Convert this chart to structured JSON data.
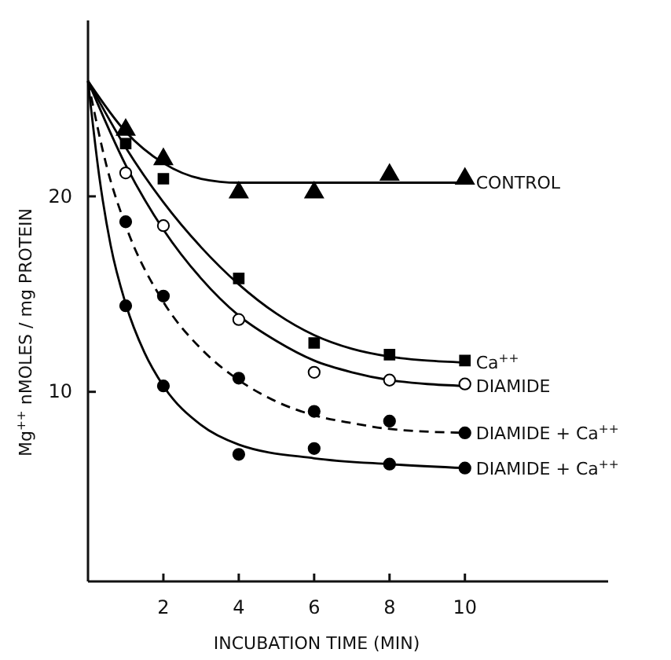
{
  "chart_data": {
    "type": "line",
    "xlabel": "INCUBATION TIME (MIN)",
    "ylabel": "Mg$^{++}$ nMOLES / mg PROTEIN",
    "xlim": [
      0,
      13.8
    ],
    "ylim": [
      0.3,
      29
    ],
    "xticks": [
      2,
      4,
      6,
      8,
      10
    ],
    "yticks": [
      10,
      20
    ],
    "grid": false,
    "legend": false,
    "series": [
      {
        "type": "line",
        "name": "CONTROL",
        "color": "#000000",
        "line_style": "solid",
        "marker": "none",
        "x": [
          0,
          1,
          2,
          3,
          4,
          6,
          10
        ],
        "values": [
          25.9,
          23.3,
          21.7,
          20.9,
          20.7,
          20.7,
          20.7
        ]
      },
      {
        "type": "scatter",
        "color": "#000000",
        "marker": "triangle",
        "x": [
          1,
          2,
          4,
          6,
          8,
          10
        ],
        "values": [
          23.4,
          21.9,
          20.2,
          20.2,
          21.1,
          20.9
        ]
      },
      {
        "type": "line",
        "name": "Ca$^{++}$",
        "color": "#000000",
        "line_style": "solid",
        "marker": "none",
        "x": [
          0,
          1,
          2,
          3,
          4,
          5,
          6,
          7,
          8,
          9,
          10
        ],
        "values": [
          25.9,
          22.5,
          19.7,
          17.4,
          15.5,
          14.0,
          12.9,
          12.2,
          11.8,
          11.6,
          11.5
        ]
      },
      {
        "type": "scatter",
        "color": "#000000",
        "marker": "square",
        "x": [
          1,
          2,
          4,
          6,
          8,
          10
        ],
        "values": [
          22.7,
          20.9,
          15.8,
          12.5,
          11.9,
          11.6
        ]
      },
      {
        "type": "line",
        "name": "DIAMIDE",
        "color": "#000000",
        "line_style": "solid",
        "marker": "none",
        "x": [
          0,
          1,
          2,
          3,
          4,
          5,
          6,
          7,
          8,
          9,
          10
        ],
        "values": [
          25.9,
          21.6,
          18.3,
          15.8,
          13.9,
          12.6,
          11.6,
          11.0,
          10.6,
          10.4,
          10.3
        ]
      },
      {
        "type": "scatter",
        "color": "#ffffff",
        "marker": "circle",
        "x": [
          1,
          2,
          4,
          6,
          8,
          10
        ],
        "values": [
          21.2,
          18.5,
          13.7,
          11.0,
          10.6,
          10.4
        ]
      },
      {
        "type": "line",
        "name": "DIAMIDE + Ca$^{++}$",
        "color": "#000000",
        "line_style": "dashed",
        "marker": "none",
        "x": [
          0,
          0.5,
          1,
          2,
          3,
          4,
          5,
          6,
          7,
          8,
          10
        ],
        "values": [
          25.9,
          21.5,
          18.5,
          14.6,
          12.2,
          10.6,
          9.5,
          8.8,
          8.4,
          8.1,
          7.9
        ]
      },
      {
        "type": "scatter",
        "color": "#000000",
        "marker": "circle",
        "x": [
          1,
          2,
          4,
          6,
          8,
          10
        ],
        "values": [
          18.7,
          14.9,
          10.7,
          9.0,
          8.5,
          7.9
        ]
      },
      {
        "type": "line",
        "name": "DIAMIDE + Ca$^{++}$",
        "color": "#000000",
        "line_style": "solid",
        "marker": "none",
        "x": [
          0,
          0.3,
          0.6,
          1,
          1.5,
          2,
          3,
          4,
          6,
          8,
          10
        ],
        "values": [
          25.9,
          21.0,
          17.5,
          14.5,
          12.0,
          10.3,
          8.3,
          7.3,
          6.6,
          6.3,
          6.1
        ]
      },
      {
        "type": "scatter",
        "color": "#000000",
        "marker": "circle",
        "x": [
          1,
          2,
          4,
          6,
          8,
          10
        ],
        "values": [
          14.4,
          10.3,
          6.8,
          7.1,
          6.3,
          6.1
        ]
      }
    ]
  }
}
